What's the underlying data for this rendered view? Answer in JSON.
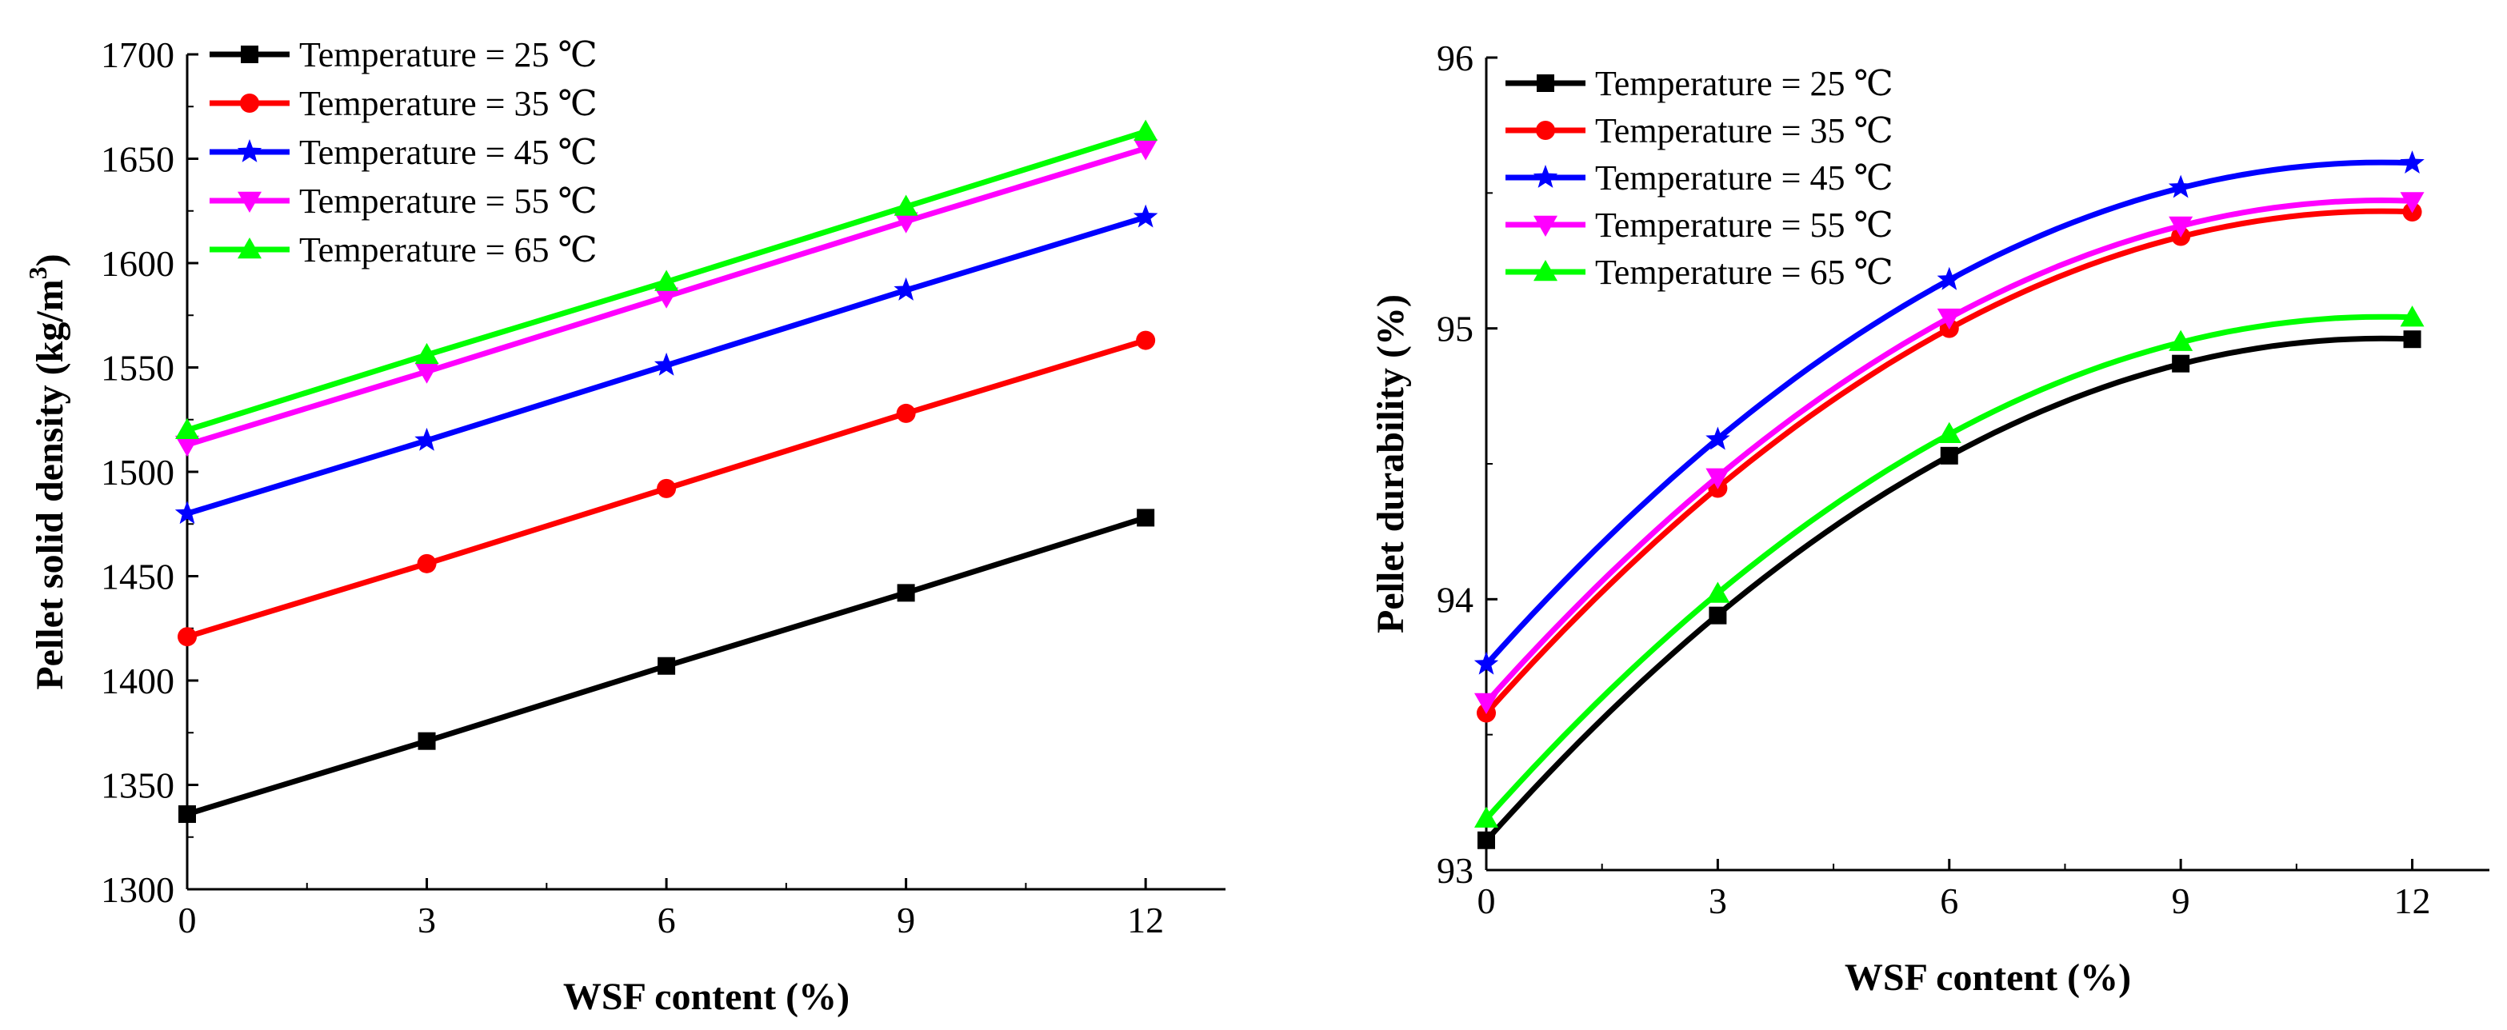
{
  "chart_data": [
    {
      "type": "line",
      "title": "",
      "xlabel": "WSF content (%)",
      "ylabel": "Pellet solid density (kg/m",
      "ylabel_superscript": "3",
      "ylabel_suffix": ")",
      "x": [
        0,
        3,
        6,
        9,
        12
      ],
      "xlim": [
        0,
        13
      ],
      "ylim": [
        1300,
        1700
      ],
      "xticks": [
        "0",
        "3",
        "6",
        "9",
        "12"
      ],
      "yticks": [
        "1300",
        "1350",
        "1400",
        "1450",
        "1500",
        "1550",
        "1600",
        "1650",
        "1700"
      ],
      "legend_position": "top-left",
      "fit": "linear",
      "series": [
        {
          "name": "Temperature = 25 ℃",
          "color": "#000000",
          "marker": "square",
          "values": [
            1336,
            1371,
            1407,
            1442,
            1478
          ]
        },
        {
          "name": "Temperature = 35 ℃",
          "color": "#ff0000",
          "marker": "circle",
          "values": [
            1421,
            1456,
            1492,
            1528,
            1563
          ]
        },
        {
          "name": "Temperature = 45 ℃",
          "color": "#0000ff",
          "marker": "star",
          "values": [
            1480,
            1515,
            1551,
            1587,
            1622
          ]
        },
        {
          "name": "Temperature = 55 ℃",
          "color": "#ff00ff",
          "marker": "triangle-down",
          "values": [
            1513,
            1548,
            1584,
            1620,
            1655
          ]
        },
        {
          "name": "Temperature = 65 ℃",
          "color": "#00ff00",
          "marker": "triangle-up",
          "values": [
            1520,
            1556,
            1591,
            1627,
            1663
          ]
        }
      ]
    },
    {
      "type": "line",
      "title": "",
      "xlabel": "WSF content (%)",
      "ylabel": "Pellet durability (%)",
      "x": [
        0,
        3,
        6,
        9,
        12
      ],
      "xlim": [
        0,
        13
      ],
      "ylim": [
        93,
        96
      ],
      "xticks": [
        "0",
        "3",
        "6",
        "9",
        "12"
      ],
      "yticks": [
        "93",
        "94",
        "95",
        "96"
      ],
      "legend_position": "top-left",
      "fit": "quadratic",
      "series": [
        {
          "name": "Temperature = 25 ℃",
          "color": "#000000",
          "marker": "square",
          "values": [
            93.11,
            93.94,
            94.53,
            94.87,
            94.96
          ]
        },
        {
          "name": "Temperature = 35 ℃",
          "color": "#ff0000",
          "marker": "circle",
          "values": [
            93.58,
            94.41,
            95.0,
            95.34,
            95.43
          ]
        },
        {
          "name": "Temperature = 45 ℃",
          "color": "#0000ff",
          "marker": "star",
          "values": [
            93.76,
            94.59,
            95.18,
            95.52,
            95.61
          ]
        },
        {
          "name": "Temperature = 55 ℃",
          "color": "#ff00ff",
          "marker": "triangle-down",
          "values": [
            93.62,
            94.45,
            95.04,
            95.38,
            95.47
          ]
        },
        {
          "name": "Temperature = 65 ℃",
          "color": "#00ff00",
          "marker": "triangle-up",
          "values": [
            93.19,
            94.02,
            94.61,
            94.95,
            95.04
          ]
        }
      ]
    }
  ]
}
